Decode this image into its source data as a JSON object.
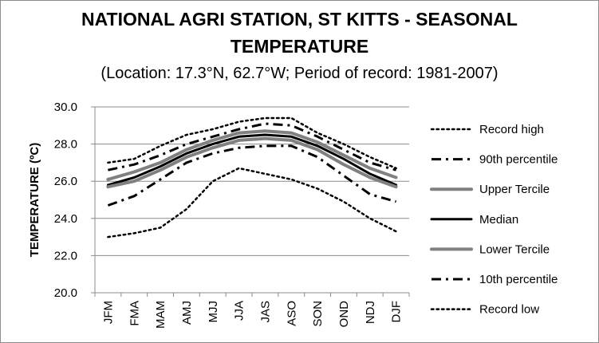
{
  "chart_data": {
    "type": "line",
    "title_line1": "NATIONAL AGRI STATION, ST KITTS - SEASONAL",
    "title_line2": "TEMPERATURE",
    "subtitle": "(Location: 17.3°N, 62.7°W; Period of record: 1981-2007)",
    "xlabel": "",
    "ylabel": "TEMPERATURE (ºC)",
    "ylim": [
      20,
      30
    ],
    "yticks": [
      "20.0",
      "22.0",
      "24.0",
      "26.0",
      "28.0",
      "30.0"
    ],
    "grid": "horizontal",
    "legend_position": "right",
    "categories": [
      "JFM",
      "FMA",
      "MAM",
      "AMJ",
      "MJJ",
      "JJA",
      "JAS",
      "ASO",
      "SON",
      "OND",
      "NDJ",
      "DJF"
    ],
    "series": [
      {
        "name": "Record high",
        "style": "dotted",
        "color": "#000000",
        "values": [
          27.0,
          27.2,
          27.9,
          28.5,
          28.8,
          29.2,
          29.4,
          29.4,
          28.6,
          28.0,
          27.3,
          26.7
        ]
      },
      {
        "name": "90th percentile",
        "style": "dashdot",
        "color": "#000000",
        "values": [
          26.6,
          26.9,
          27.4,
          28.0,
          28.4,
          28.8,
          29.1,
          29.0,
          28.4,
          27.7,
          27.0,
          26.6
        ]
      },
      {
        "name": "Upper Tercile",
        "style": "solid-gray",
        "color": "#808080",
        "values": [
          26.1,
          26.5,
          27.0,
          27.7,
          28.2,
          28.6,
          28.7,
          28.6,
          28.1,
          27.4,
          26.7,
          26.2
        ]
      },
      {
        "name": "Median",
        "style": "solid-black",
        "color": "#000000",
        "values": [
          25.8,
          26.2,
          26.8,
          27.5,
          28.0,
          28.4,
          28.5,
          28.4,
          27.9,
          27.2,
          26.4,
          25.8
        ]
      },
      {
        "name": "Lower Tercile",
        "style": "solid-gray",
        "color": "#808080",
        "values": [
          25.7,
          26.0,
          26.6,
          27.3,
          27.8,
          28.2,
          28.3,
          28.2,
          27.7,
          26.9,
          26.2,
          25.7
        ]
      },
      {
        "name": "10th percentile",
        "style": "dashdot",
        "color": "#000000",
        "values": [
          24.7,
          25.2,
          26.1,
          27.0,
          27.5,
          27.8,
          27.9,
          27.9,
          27.3,
          26.3,
          25.3,
          24.9
        ]
      },
      {
        "name": "Record low",
        "style": "dotted",
        "color": "#000000",
        "values": [
          23.0,
          23.2,
          23.5,
          24.5,
          26.0,
          26.7,
          26.4,
          26.1,
          25.6,
          24.9,
          24.0,
          23.3
        ]
      }
    ]
  }
}
